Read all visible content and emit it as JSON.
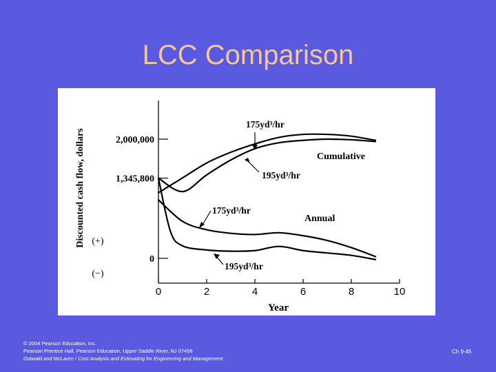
{
  "slide": {
    "title": "LCC Comparison",
    "background_color": "#5a5ae0",
    "title_color": "#f3c79a"
  },
  "footer": {
    "line1": "© 2004 Pearson Education, Inc.",
    "line2": "Pearson Prentice Hall, Pearson Education, Upper Saddle River, NJ 07458",
    "line3_prefix": "Ostwald and McLaren / ",
    "line3_italic": "Cost Analysis and Estimating for Engineering and Management",
    "page": "Ch 9-45"
  },
  "chart_data": {
    "type": "line",
    "ylabel": "Discounted cash flow, dollars",
    "xlabel": "Year",
    "x_ticks": [
      "0",
      "2",
      "4",
      "6",
      "8",
      "10"
    ],
    "xlim": [
      0,
      10
    ],
    "y_tick_labels": [
      {
        "label": "2,000,000",
        "value": 2000000
      },
      {
        "label": "1,345,800",
        "value": 1345800
      },
      {
        "label": "0",
        "value": 0
      }
    ],
    "ylim": [
      -200000,
      2400000
    ],
    "sign_labels": [
      "(+)",
      "(−)"
    ],
    "grid": false,
    "series": [
      {
        "group": "Cumulative",
        "rate": "175yd³/hr",
        "points": [
          [
            0,
            1100000
          ],
          [
            1,
            1350000
          ],
          [
            2,
            1600000
          ],
          [
            3,
            1780000
          ],
          [
            4,
            1920000
          ],
          [
            5,
            2030000
          ],
          [
            6,
            2080000
          ],
          [
            7,
            2080000
          ],
          [
            8,
            2050000
          ],
          [
            9,
            1980000
          ]
        ]
      },
      {
        "group": "Cumulative",
        "rate": "195yd³/hr",
        "points": [
          [
            0,
            1345800
          ],
          [
            1,
            1120000
          ],
          [
            2,
            1400000
          ],
          [
            3,
            1650000
          ],
          [
            4,
            1840000
          ],
          [
            5,
            1940000
          ],
          [
            6,
            1980000
          ],
          [
            7,
            2000000
          ],
          [
            8,
            1990000
          ],
          [
            9,
            1960000
          ]
        ]
      },
      {
        "group": "Annual",
        "rate": "175yd³/hr",
        "points": [
          [
            0,
            980000
          ],
          [
            1,
            620000
          ],
          [
            2,
            480000
          ],
          [
            3,
            420000
          ],
          [
            4,
            400000
          ],
          [
            5,
            430000
          ],
          [
            6,
            380000
          ],
          [
            7,
            300000
          ],
          [
            8,
            180000
          ],
          [
            9,
            30000
          ]
        ]
      },
      {
        "group": "Annual",
        "rate": "195yd³/hr",
        "points": [
          [
            0,
            1345800
          ],
          [
            0.5,
            450000
          ],
          [
            1,
            210000
          ],
          [
            2,
            140000
          ],
          [
            3,
            120000
          ],
          [
            4,
            130000
          ],
          [
            5,
            200000
          ],
          [
            6,
            130000
          ],
          [
            7,
            90000
          ],
          [
            8,
            50000
          ],
          [
            9,
            -20000
          ]
        ]
      }
    ],
    "annotations": [
      {
        "text": "Cumulative"
      },
      {
        "text": "Annual"
      },
      {
        "text": "175yd³/hr"
      },
      {
        "text": "195yd³/hr"
      },
      {
        "text": "175yd³/hr"
      },
      {
        "text": "195yd³/hr"
      }
    ]
  }
}
